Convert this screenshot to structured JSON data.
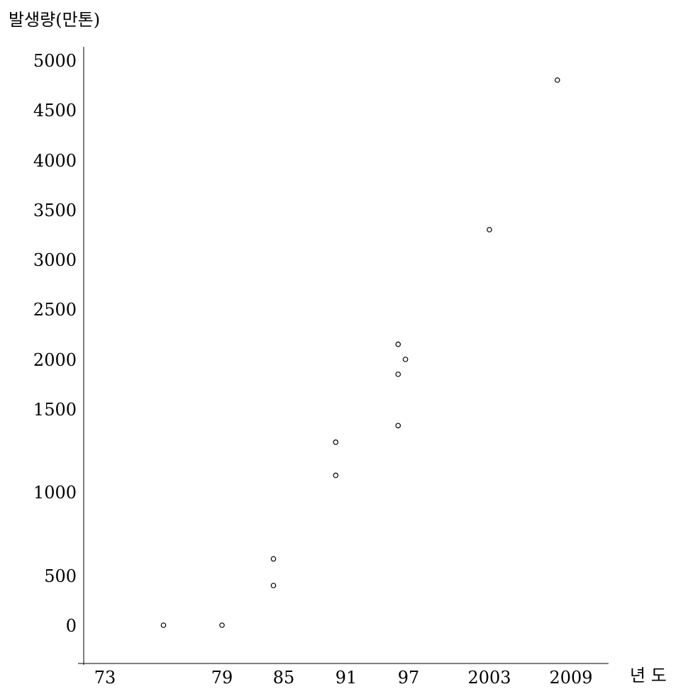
{
  "chart_data": {
    "type": "scatter",
    "title": "",
    "ylabel": "발생량(만톤)",
    "xlabel": "년 도",
    "x_ticks": [
      "73",
      "79",
      "85",
      "91",
      "97",
      "2003",
      "2009"
    ],
    "y_ticks": [
      "0",
      "500",
      "1000",
      "1500",
      "2000",
      "2500",
      "3000",
      "3500",
      "4000",
      "4500",
      "5000"
    ],
    "grid": false,
    "legend": "none",
    "point_color": "#000000",
    "series": [
      {
        "points": [
          {
            "x": 1976,
            "y": 0
          },
          {
            "x": 1979,
            "y": 0
          },
          {
            "x": 1984,
            "y": 400
          },
          {
            "x": 1984,
            "y": 600
          },
          {
            "x": 1990,
            "y": 1100
          },
          {
            "x": 1990,
            "y": 1300
          },
          {
            "x": 1996,
            "y": 1400
          },
          {
            "x": 1996,
            "y": 1850
          },
          {
            "x": 1996,
            "y": 2150
          },
          {
            "x": 1996.7,
            "y": 2000
          },
          {
            "x": 2003,
            "y": 3300
          },
          {
            "x": 2008,
            "y": 4800
          }
        ]
      }
    ]
  }
}
